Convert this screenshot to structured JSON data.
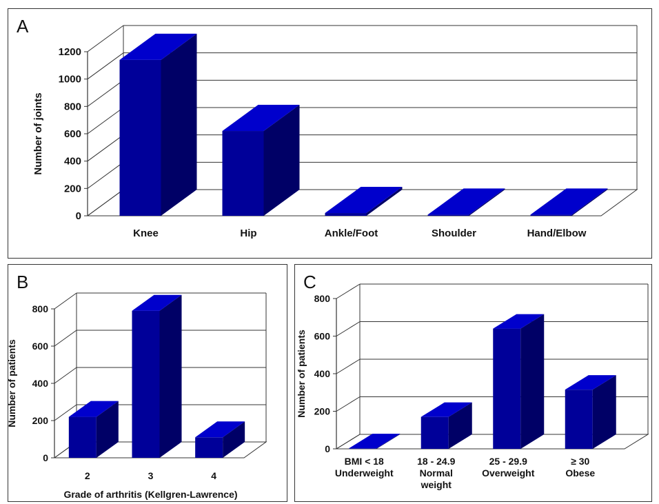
{
  "colors": {
    "bar_front": "#000099",
    "bar_side": "#000066",
    "bar_top": "#0000cc",
    "grid": "#333333"
  },
  "panels": {
    "a": {
      "letter": "A"
    },
    "b": {
      "letter": "B"
    },
    "c": {
      "letter": "C"
    }
  },
  "chart_data": [
    {
      "id": "A",
      "type": "bar",
      "title": "",
      "xlabel": "",
      "ylabel": "Number of joints",
      "categories": [
        "Knee",
        "Hip",
        "Ankle/Foot",
        "Shoulder",
        "Hand/Elbow"
      ],
      "values": [
        1140,
        620,
        20,
        8,
        8
      ],
      "ylim": [
        0,
        1200
      ],
      "yticks": [
        "0",
        "200",
        "400",
        "600",
        "800",
        "1000",
        "1200"
      ],
      "grid": true,
      "legend": "none"
    },
    {
      "id": "B",
      "type": "bar",
      "title": "",
      "xlabel": "Grade of arthritis (Kellgren-Lawrence)",
      "ylabel": "Number of patients",
      "categories": [
        "2",
        "3",
        "4"
      ],
      "values": [
        220,
        790,
        110
      ],
      "ylim": [
        0,
        800
      ],
      "yticks": [
        "0",
        "200",
        "400",
        "600",
        "800"
      ],
      "grid": true,
      "legend": "none"
    },
    {
      "id": "C",
      "type": "bar",
      "title": "",
      "xlabel": "",
      "ylabel": "Number of patients",
      "categories": [
        "BMI < 18\nUnderweight",
        "18 - 24.9\nNormal\nweight",
        "25 - 29.9\nOverweight",
        "≥ 30\nObese"
      ],
      "values": [
        3,
        170,
        640,
        315
      ],
      "ylim": [
        0,
        800
      ],
      "yticks": [
        "0",
        "200",
        "400",
        "600",
        "800"
      ],
      "grid": true,
      "legend": "none"
    }
  ]
}
